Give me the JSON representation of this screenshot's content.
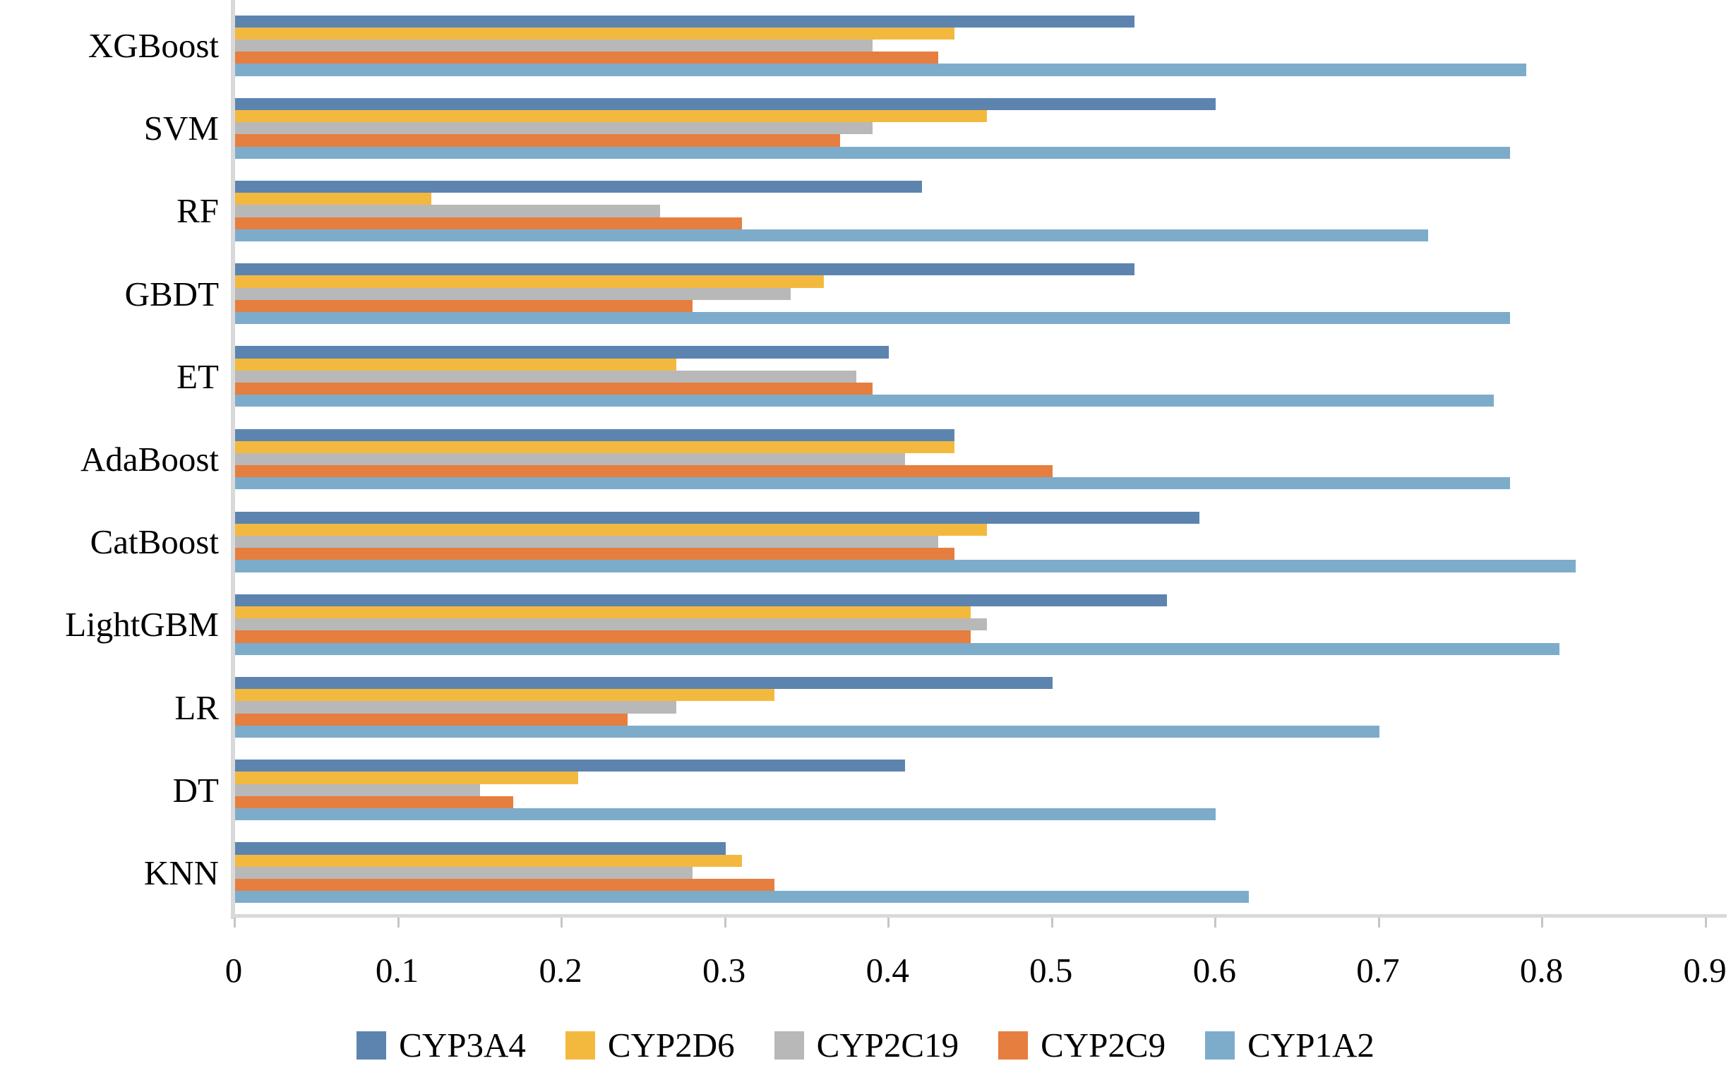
{
  "chart_data": {
    "type": "bar",
    "orientation": "horizontal",
    "title": "",
    "xlabel": "",
    "ylabel": "",
    "xlim": [
      0,
      0.9
    ],
    "grid": false,
    "legend_position": "bottom",
    "categories": [
      "XGBoost",
      "SVM",
      "RF",
      "GBDT",
      "ET",
      "AdaBoost",
      "CatBoost",
      "LightGBM",
      "LR",
      "DT",
      "KNN"
    ],
    "series": [
      {
        "name": "CYP3A4",
        "color": "#5c84af",
        "values": [
          0.55,
          0.6,
          0.42,
          0.55,
          0.4,
          0.44,
          0.59,
          0.57,
          0.5,
          0.41,
          0.3
        ]
      },
      {
        "name": "CYP2D6",
        "color": "#f3b93f",
        "values": [
          0.44,
          0.46,
          0.12,
          0.36,
          0.27,
          0.44,
          0.46,
          0.45,
          0.33,
          0.21,
          0.31
        ]
      },
      {
        "name": "CYP2C19",
        "color": "#b8b8b8",
        "values": [
          0.39,
          0.39,
          0.26,
          0.34,
          0.38,
          0.41,
          0.43,
          0.46,
          0.27,
          0.15,
          0.28
        ]
      },
      {
        "name": "CYP2C9",
        "color": "#e57e3f",
        "values": [
          0.43,
          0.37,
          0.31,
          0.28,
          0.39,
          0.5,
          0.44,
          0.45,
          0.24,
          0.17,
          0.33
        ]
      },
      {
        "name": "CYP1A2",
        "color": "#7daccb",
        "values": [
          0.79,
          0.78,
          0.73,
          0.78,
          0.77,
          0.78,
          0.82,
          0.81,
          0.7,
          0.6,
          0.62
        ]
      }
    ],
    "x_ticks": [
      "0",
      "0.1",
      "0.2",
      "0.3",
      "0.4",
      "0.5",
      "0.6",
      "0.7",
      "0.8",
      "0.9"
    ],
    "axis_line_color": "#d9d9d9",
    "tick_mark_color": "#c6c6c6"
  }
}
